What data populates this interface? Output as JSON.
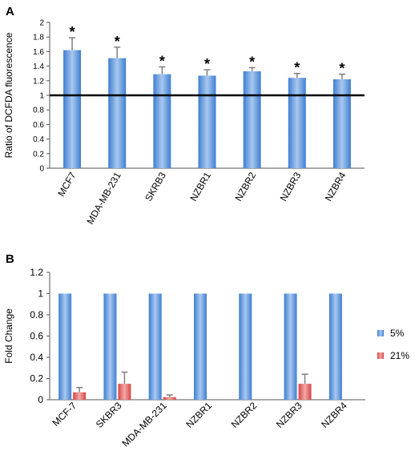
{
  "colors": {
    "bar_blue_light": "#a9c8f0",
    "bar_blue_dark": "#3f7fd0",
    "bar_red_light": "#f4a8a8",
    "bar_red_dark": "#d64545",
    "reference_line": "#000000",
    "error_bar": "#7f7f7f"
  },
  "chart_data": [
    {
      "panel": "A",
      "type": "bar",
      "ylabel": "Ratio of DCFDA fluorescence",
      "xlabel": "",
      "ylim": [
        0,
        2
      ],
      "yticks": [
        0,
        0.2,
        0.4,
        0.6,
        0.8,
        1,
        1.2,
        1.4,
        1.6,
        1.8,
        2
      ],
      "grid": false,
      "categories": [
        "MCF7",
        "MDA-MB-231",
        "SKRB3",
        "NZBR1",
        "NZBR2",
        "NZBR3",
        "NZBR4"
      ],
      "values": [
        1.62,
        1.51,
        1.29,
        1.27,
        1.33,
        1.24,
        1.22
      ],
      "errors": [
        0.17,
        0.15,
        0.1,
        0.08,
        0.05,
        0.06,
        0.07
      ],
      "significance": [
        "*",
        "*",
        "*",
        "*",
        "*",
        "*",
        "*"
      ],
      "reference_line": 1
    },
    {
      "panel": "B",
      "type": "bar",
      "ylabel": "Fold Change",
      "xlabel": "",
      "ylim": [
        0,
        1.2
      ],
      "yticks": [
        0,
        0.2,
        0.4,
        0.6,
        0.8,
        1,
        1.2
      ],
      "grid": false,
      "legend_position": "right",
      "categories": [
        "MCF-7",
        "SKBR3",
        "MDA-MB-231",
        "NZBR1",
        "NZBR2",
        "NZBR3",
        "NZBR4"
      ],
      "series": [
        {
          "name": "5%",
          "values": [
            1,
            1,
            1,
            1,
            1,
            1,
            1
          ],
          "errors": [
            0,
            0,
            0,
            0,
            0,
            0,
            0
          ]
        },
        {
          "name": "21%",
          "values": [
            0.07,
            0.15,
            0.025,
            0,
            0,
            0.15,
            0
          ],
          "errors": [
            0.045,
            0.11,
            0.02,
            0,
            0,
            0.09,
            0
          ]
        }
      ]
    }
  ]
}
